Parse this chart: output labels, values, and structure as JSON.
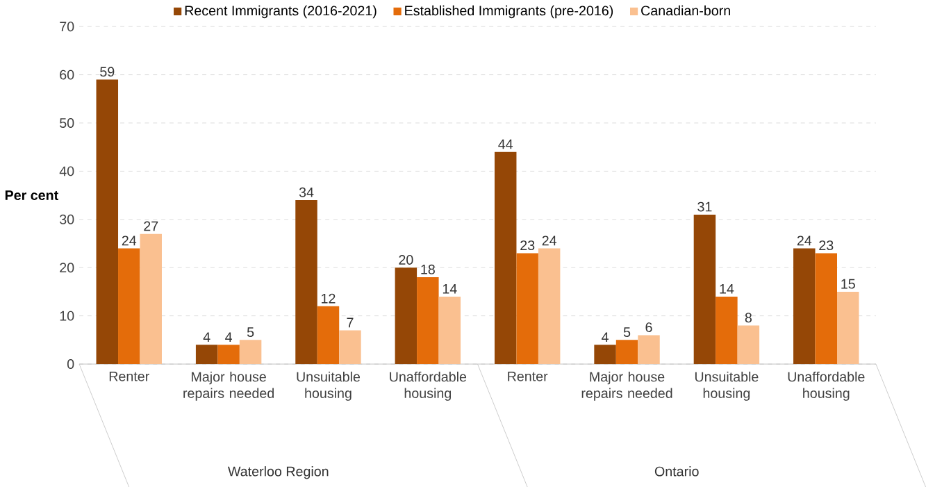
{
  "chart_data": {
    "type": "bar",
    "ylabel": "Per cent",
    "categories": [
      "Renter",
      "Major house repairs needed",
      "Unsuitable housing",
      "Unaffordable housing",
      "Renter",
      "Major house repairs needed",
      "Unsuitable housing",
      "Unaffordable housing"
    ],
    "series": [
      {
        "name": "Recent Immigrants (2016-2021)",
        "color": "#954706",
        "values": [
          59,
          4,
          34,
          20,
          44,
          4,
          31,
          24
        ]
      },
      {
        "name": "Established Immigrants (pre-2016)",
        "color": "#e46c0a",
        "values": [
          24,
          4,
          12,
          18,
          23,
          5,
          14,
          23
        ]
      },
      {
        "name": "Canadian-born",
        "color": "#fac090",
        "values": [
          27,
          5,
          7,
          14,
          24,
          6,
          8,
          15
        ]
      }
    ],
    "annotations": [
      "Waterloo Region",
      "Ontario"
    ],
    "ylim": [
      0,
      70
    ],
    "yticks": [
      0,
      10,
      20,
      30,
      40,
      50,
      60,
      70
    ],
    "grid": "y",
    "legend": "top",
    "data_labels": true
  }
}
